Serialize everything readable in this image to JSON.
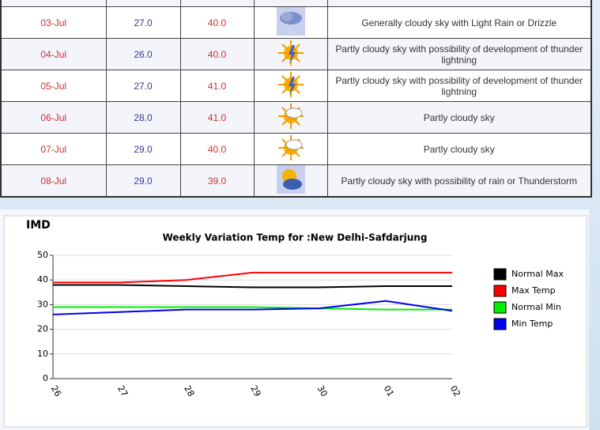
{
  "table": {
    "rows": [
      [
        "03-Jul",
        "27.0",
        "40.0",
        "Generally cloudy sky with Light Rain or Drizzle"
      ],
      [
        "04-Jul",
        "26.0",
        "40.0",
        "Partly cloudy sky with possibility of development of thunder lightning"
      ],
      [
        "05-Jul",
        "27.0",
        "41.0",
        "Partly cloudy sky with possibility of development of thunder lightning"
      ],
      [
        "06-Jul",
        "28.0",
        "41.0",
        "Partly cloudy sky"
      ],
      [
        "07-Jul",
        "29.0",
        "40.0",
        "Partly cloudy sky"
      ],
      [
        "08-Jul",
        "29.0",
        "39.0",
        "Partly cloudy sky with possibility of rain or Thunderstorm"
      ]
    ]
  },
  "chart_data": {
    "type": "line",
    "brand": "IMD",
    "title": "Weekly Variation Temp for :New Delhi-Safdarjung",
    "categories": [
      "26",
      "27",
      "28",
      "29",
      "30",
      "01",
      "02"
    ],
    "series": [
      {
        "name": "Normal Max",
        "color": "#000000",
        "values": [
          38,
          38,
          37.5,
          37,
          37,
          37.5,
          37.5
        ]
      },
      {
        "name": "Max Temp",
        "color": "#ff0000",
        "values": [
          39,
          39,
          40,
          43,
          43,
          43,
          43
        ]
      },
      {
        "name": "Normal Min",
        "color": "#00ee00",
        "values": [
          29,
          29,
          29,
          29,
          28.5,
          28,
          28
        ]
      },
      {
        "name": "Min Temp",
        "color": "#0000ee",
        "values": [
          26,
          27,
          28,
          28,
          28.5,
          31.5,
          27.5
        ]
      }
    ],
    "ylim": [
      0,
      50
    ],
    "yticks": [
      0,
      10,
      20,
      30,
      40,
      50
    ],
    "grid": true
  }
}
